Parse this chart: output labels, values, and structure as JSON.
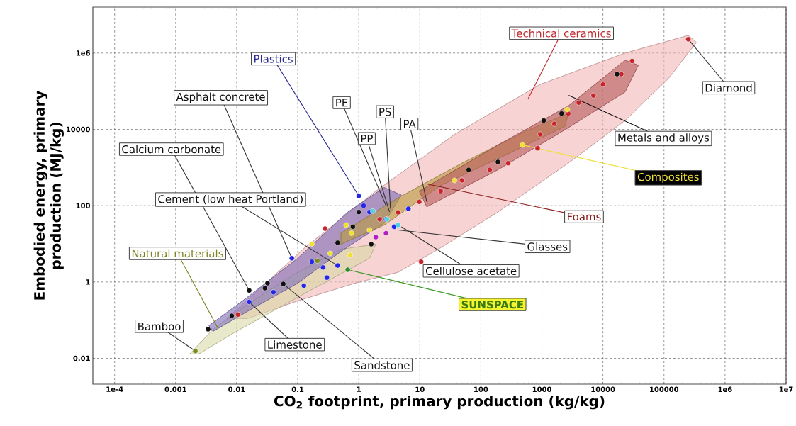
{
  "chart_data": {
    "type": "scatter",
    "xlabel": "CO$_{2}$ footprint, primary production (kg/kg)",
    "ylabel": "Embodied energy, primary production (MJ/kg)",
    "log": "xy",
    "grid": true,
    "marker": "circle",
    "xlim": [
      4.4e-05,
      10000000
    ],
    "ylim": [
      0.0021,
      16000000
    ],
    "xticks": [
      {
        "value": 0.0001,
        "label": "1e-4"
      },
      0.001,
      0.01,
      0.1,
      1,
      10,
      100,
      1000,
      10000,
      100000,
      {
        "value": 1000000,
        "label": "1e6"
      },
      {
        "value": 10000000,
        "label": "1e7"
      }
    ],
    "yticks": [
      0.01,
      1,
      100,
      10000,
      {
        "value": 1000000,
        "label": "1e6"
      }
    ],
    "series": [
      {
        "type": "area",
        "marker": "none",
        "color": "#f2b6b6",
        "x": [
          0.0069,
          0.13,
          1.9,
          37,
          930,
          23000,
          250000,
          340000,
          120000,
          23000,
          2700,
          190,
          22,
          4.4,
          0.87,
          0.1,
          0.015
        ],
        "values": [
          0.11,
          7.9,
          240,
          7400,
          150000,
          1000000,
          2900000,
          1900000,
          220000,
          17000,
          1300,
          68,
          7.9,
          1.8,
          0.93,
          0.32,
          0.11
        ]
      },
      {
        "type": "area",
        "marker": "none",
        "color": "#d9d9a6",
        "x": [
          0.0017,
          0.0041,
          0.015,
          0.1,
          0.51,
          1.9,
          1.5,
          0.1,
          0.0091,
          0.0024
        ],
        "values": [
          0.013,
          0.058,
          0.26,
          1.8,
          7.2,
          9.8,
          4.2,
          0.4,
          0.047,
          0.013
        ]
      },
      {
        "type": "area",
        "marker": "none",
        "color": "#7b6bb5",
        "x": [
          0.0035,
          0.015,
          0.1,
          0.66,
          2.6,
          5,
          2.6,
          0.51,
          0.1,
          0.015,
          0.0041
        ],
        "values": [
          0.072,
          0.4,
          4.2,
          68,
          300,
          190,
          35,
          6.3,
          0.93,
          0.17,
          0.051
        ]
      },
      {
        "type": "area",
        "marker": "none",
        "color": "#b99b3e",
        "x": [
          0.51,
          4.4,
          49,
          550,
          2700,
          2400,
          190,
          22,
          2.6,
          0.51
        ],
        "values": [
          19,
          160,
          1300,
          9100,
          26000,
          12000,
          1700,
          340,
          31,
          9.8
        ]
      },
      {
        "type": "area",
        "marker": "none",
        "color": "#b55a5a",
        "x": [
          9.8,
          190,
          2700,
          23000,
          38000,
          23000,
          2700,
          190,
          13
        ],
        "values": [
          240,
          3900,
          41000,
          650000,
          480000,
          95000,
          11000,
          870,
          93
        ]
      },
      {
        "color": "#c8242c",
        "x": [
          250000,
          30000,
          20000,
          10000,
          7000,
          4000,
          2700,
          1600,
          940,
          850,
          280,
          140,
          49,
          22,
          9.8,
          4.4,
          2.2,
          0.28,
          0.0105,
          10.5
        ],
        "values": [
          2300000,
          620000,
          280000,
          150000,
          77000,
          50000,
          26000,
          14000,
          7400,
          3200,
          1300,
          870,
          460,
          240,
          126,
          67,
          44,
          25,
          0.14,
          3.4
        ]
      },
      {
        "color": "#2626e6",
        "x": [
          1,
          1.2,
          1.5,
          2.8,
          3.8,
          6.5,
          0.08,
          0.17,
          0.26,
          0.3,
          0.45,
          0.126,
          0.04,
          0.016
        ],
        "values": [
          180,
          100,
          68,
          44,
          28,
          83,
          4.2,
          3.4,
          2.4,
          1.3,
          2.7,
          0.8,
          0.54,
          0.3
        ]
      },
      {
        "color": "#f0e030",
        "x": [
          480,
          2600,
          0.17,
          0.34,
          0.72,
          0.76,
          0.62,
          1.5,
          37
        ],
        "values": [
          3900,
          33000,
          10,
          5.6,
          5.1,
          19,
          31,
          23,
          460
        ]
      },
      {
        "color": "#111111",
        "x": [
          0.0034,
          0.0083,
          0.016,
          0.029,
          0.032,
          0.058,
          0.45,
          1,
          0.8,
          1.6,
          63,
          190,
          1070,
          2100,
          17000
        ],
        "values": [
          0.058,
          0.13,
          0.6,
          0.69,
          0.93,
          0.89,
          10.7,
          68,
          28,
          9.8,
          870,
          1400,
          17000,
          26000,
          280000
        ]
      },
      {
        "color": "#50d0e0",
        "x": [
          1.7,
          2.9,
          4.4
        ],
        "values": [
          72,
          44,
          31
        ]
      },
      {
        "color": "#b020c0",
        "x": [
          1.9,
          2.8
        ],
        "values": [
          15,
          19
        ]
      },
      {
        "color": "#2e8b2e",
        "x": [
          0.66
        ],
        "values": [
          2.1
        ]
      },
      {
        "color": "#7a8a20",
        "x": [
          0.0021,
          0.21
        ],
        "values": [
          0.0155,
          3.6
        ]
      }
    ],
    "annotations": [
      "Technical ceramics",
      {
        "text": "Plastics",
        "x": 1,
        "y": 180
      },
      {
        "text": "Asphalt concrete",
        "x": 0.08,
        "y": 4.2
      },
      {
        "text": "PE",
        "x": 2.8,
        "y": 100
      },
      {
        "text": "PP",
        "x": 3.2,
        "y": 68
      },
      {
        "text": "PS",
        "x": 3.3,
        "y": 83
      },
      {
        "text": "PA",
        "x": 13,
        "y": 126
      },
      {
        "text": "Calcium carbonate",
        "x": 0.016,
        "y": 0.6
      },
      {
        "text": "Cement (low heat Portland)",
        "x": 0.45,
        "y": 2.7
      },
      {
        "text": "Natural materials",
        "x": 0.0049,
        "y": 0.063
      },
      {
        "text": "Bamboo",
        "x": 0.0021,
        "y": 0.0155
      },
      {
        "text": "Limestone",
        "x": 0.016,
        "y": 0.3
      },
      {
        "text": "Sandstone",
        "x": 0.058,
        "y": 0.89
      },
      {
        "text": "Diamond",
        "x": 250000,
        "y": 2300000
      },
      "Metals and alloys",
      {
        "text": "Composites",
        "x": 480,
        "y": 3900
      },
      {
        "text": "Foams",
        "x": 13,
        "y": 370
      },
      {
        "text": "Glasses",
        "x": 4.4,
        "y": 23
      },
      {
        "text": "Cellulose acetate",
        "x": 5,
        "y": 28
      },
      {
        "text": "SUNSPACE",
        "x": 0.66,
        "y": 2.1
      }
    ]
  }
}
